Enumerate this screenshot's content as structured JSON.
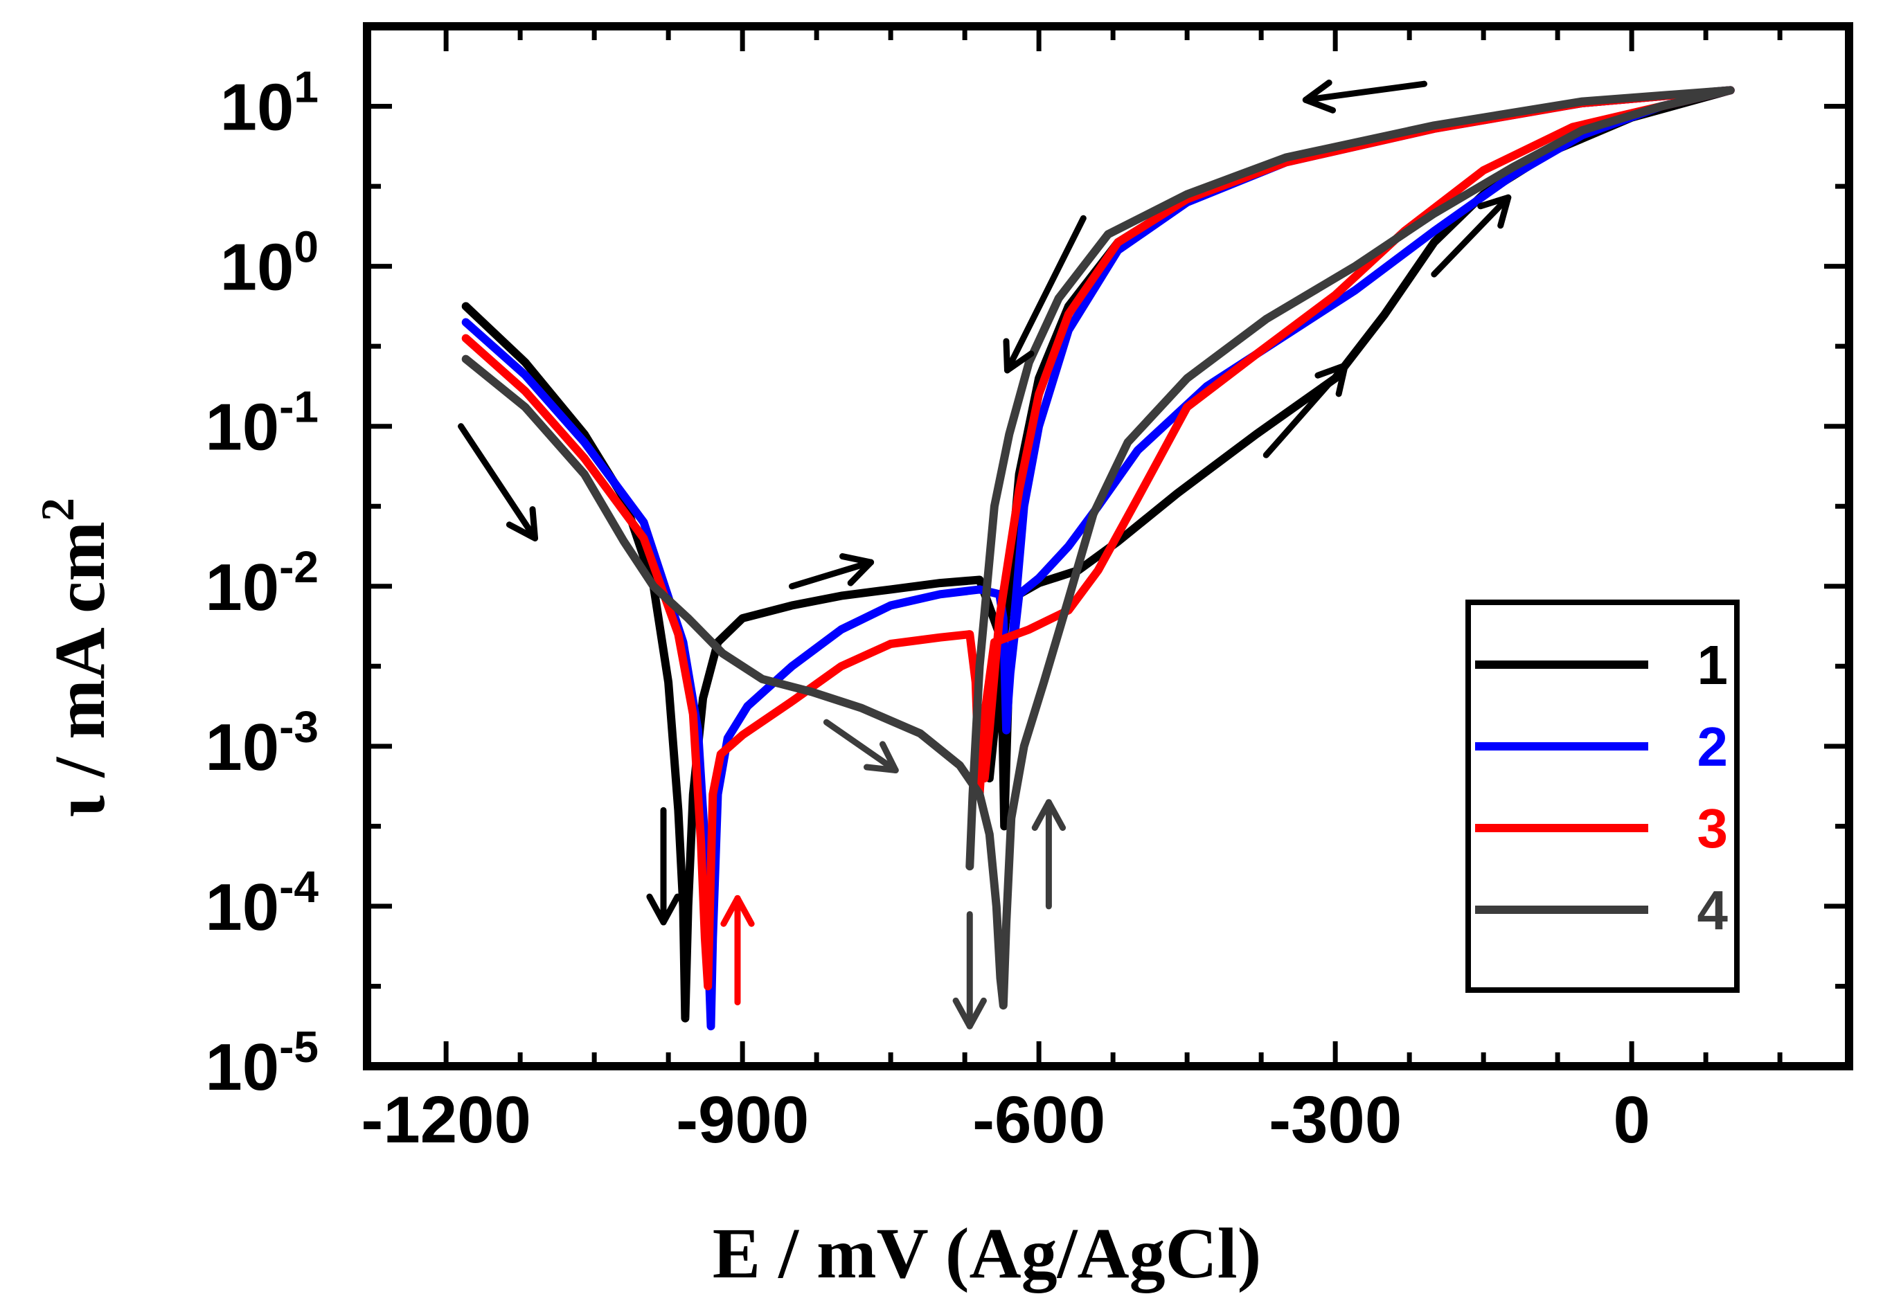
{
  "chart_data": {
    "type": "line",
    "title": "",
    "xlabel": "E / mV (Ag/AgCl)",
    "ylabel_symbol": "ι",
    "ylabel_rest": " / mA cm",
    "ylabel_sup": "2",
    "xlim": [
      -1280,
      220
    ],
    "ylim_log10": [
      -5,
      1.5
    ],
    "y_scale": "log",
    "x_ticks": [
      {
        "value": -1200,
        "label": "-1200"
      },
      {
        "value": -900,
        "label": "-900"
      },
      {
        "value": -600,
        "label": "-600"
      },
      {
        "value": -300,
        "label": "-300"
      },
      {
        "value": 0,
        "label": "0"
      }
    ],
    "y_ticks": [
      {
        "exp": 1,
        "base": "10",
        "sup": "1"
      },
      {
        "exp": 0,
        "base": "10",
        "sup": "0"
      },
      {
        "exp": -1,
        "base": "10",
        "sup": "-1"
      },
      {
        "exp": -2,
        "base": "10",
        "sup": "-2"
      },
      {
        "exp": -3,
        "base": "10",
        "sup": "-3"
      },
      {
        "exp": -4,
        "base": "10",
        "sup": "-4"
      },
      {
        "exp": -5,
        "base": "10",
        "sup": "-5"
      }
    ],
    "legend_position": "lower-right",
    "series": [
      {
        "name": "1",
        "color": "#000000",
        "points": [
          [
            -1180,
            -0.25
          ],
          [
            -1120,
            -0.6
          ],
          [
            -1060,
            -1.05
          ],
          [
            -1020,
            -1.45
          ],
          [
            -990,
            -2.0
          ],
          [
            -975,
            -2.6
          ],
          [
            -965,
            -3.4
          ],
          [
            -960,
            -4.0
          ],
          [
            -958,
            -4.7
          ],
          [
            -958,
            -4.7
          ],
          [
            -955,
            -4.0
          ],
          [
            -950,
            -3.3
          ],
          [
            -940,
            -2.7
          ],
          [
            -925,
            -2.35
          ],
          [
            -900,
            -2.2
          ],
          [
            -850,
            -2.12
          ],
          [
            -800,
            -2.06
          ],
          [
            -750,
            -2.02
          ],
          [
            -700,
            -1.98
          ],
          [
            -660,
            -1.96
          ],
          [
            -640,
            -2.3
          ],
          [
            -637,
            -2.8
          ],
          [
            -635,
            -3.5
          ],
          [
            -635,
            -3.5
          ],
          [
            -630,
            -2.5
          ],
          [
            -620,
            -2.05
          ],
          [
            -600,
            -1.98
          ],
          [
            -560,
            -1.9
          ],
          [
            -520,
            -1.72
          ],
          [
            -460,
            -1.42
          ],
          [
            -380,
            -1.05
          ],
          [
            -300,
            -0.7
          ],
          [
            -250,
            -0.3
          ],
          [
            -200,
            0.15
          ],
          [
            -150,
            0.45
          ],
          [
            -80,
            0.72
          ],
          [
            0,
            0.93
          ],
          [
            100,
            1.1
          ],
          [
            100,
            1.1
          ],
          [
            -50,
            1.02
          ],
          [
            -200,
            0.87
          ],
          [
            -350,
            0.67
          ],
          [
            -450,
            0.42
          ],
          [
            -520,
            0.15
          ],
          [
            -570,
            -0.25
          ],
          [
            -600,
            -0.7
          ],
          [
            -620,
            -1.3
          ],
          [
            -630,
            -2.0
          ],
          [
            -640,
            -2.6
          ],
          [
            -650,
            -3.2
          ]
        ]
      },
      {
        "name": "2",
        "color": "#0000ff",
        "points": [
          [
            -1180,
            -0.35
          ],
          [
            -1120,
            -0.68
          ],
          [
            -1060,
            -1.1
          ],
          [
            -1000,
            -1.6
          ],
          [
            -960,
            -2.35
          ],
          [
            -945,
            -2.9
          ],
          [
            -937,
            -3.7
          ],
          [
            -934,
            -4.4
          ],
          [
            -932,
            -4.75
          ],
          [
            -932,
            -4.75
          ],
          [
            -930,
            -4.2
          ],
          [
            -925,
            -3.3
          ],
          [
            -915,
            -2.95
          ],
          [
            -895,
            -2.75
          ],
          [
            -850,
            -2.5
          ],
          [
            -800,
            -2.27
          ],
          [
            -750,
            -2.12
          ],
          [
            -700,
            -2.05
          ],
          [
            -660,
            -2.02
          ],
          [
            -640,
            -2.05
          ],
          [
            -636,
            -2.2
          ],
          [
            -633,
            -2.9
          ],
          [
            -633,
            -2.9
          ],
          [
            -630,
            -2.6
          ],
          [
            -620,
            -2.05
          ],
          [
            -600,
            -1.95
          ],
          [
            -570,
            -1.75
          ],
          [
            -540,
            -1.5
          ],
          [
            -500,
            -1.15
          ],
          [
            -430,
            -0.75
          ],
          [
            -350,
            -0.43
          ],
          [
            -280,
            -0.15
          ],
          [
            -200,
            0.22
          ],
          [
            -120,
            0.57
          ],
          [
            -50,
            0.82
          ],
          [
            30,
            1.0
          ],
          [
            100,
            1.1
          ],
          [
            100,
            1.1
          ],
          [
            -50,
            1.02
          ],
          [
            -200,
            0.86
          ],
          [
            -350,
            0.65
          ],
          [
            -450,
            0.4
          ],
          [
            -520,
            0.1
          ],
          [
            -570,
            -0.4
          ],
          [
            -600,
            -1.0
          ],
          [
            -615,
            -1.5
          ],
          [
            -625,
            -2.2
          ],
          [
            -632,
            -2.8
          ]
        ]
      },
      {
        "name": "3",
        "color": "#ff0000",
        "points": [
          [
            -1180,
            -0.45
          ],
          [
            -1120,
            -0.78
          ],
          [
            -1060,
            -1.2
          ],
          [
            -1000,
            -1.7
          ],
          [
            -965,
            -2.3
          ],
          [
            -950,
            -2.8
          ],
          [
            -942,
            -3.6
          ],
          [
            -938,
            -4.2
          ],
          [
            -935,
            -4.5
          ],
          [
            -935,
            -4.5
          ],
          [
            -933,
            -4.0
          ],
          [
            -930,
            -3.3
          ],
          [
            -922,
            -3.05
          ],
          [
            -900,
            -2.93
          ],
          [
            -850,
            -2.72
          ],
          [
            -800,
            -2.5
          ],
          [
            -750,
            -2.36
          ],
          [
            -700,
            -2.32
          ],
          [
            -670,
            -2.3
          ],
          [
            -664,
            -2.6
          ],
          [
            -660,
            -3.3
          ],
          [
            -660,
            -3.3
          ],
          [
            -655,
            -2.8
          ],
          [
            -645,
            -2.35
          ],
          [
            -610,
            -2.27
          ],
          [
            -570,
            -2.15
          ],
          [
            -540,
            -1.9
          ],
          [
            -500,
            -1.45
          ],
          [
            -450,
            -0.88
          ],
          [
            -380,
            -0.55
          ],
          [
            -300,
            -0.18
          ],
          [
            -230,
            0.22
          ],
          [
            -150,
            0.6
          ],
          [
            -60,
            0.87
          ],
          [
            30,
            1.0
          ],
          [
            100,
            1.1
          ],
          [
            100,
            1.1
          ],
          [
            -50,
            1.02
          ],
          [
            -200,
            0.86
          ],
          [
            -350,
            0.65
          ],
          [
            -450,
            0.42
          ],
          [
            -520,
            0.15
          ],
          [
            -570,
            -0.3
          ],
          [
            -600,
            -0.8
          ],
          [
            -620,
            -1.4
          ],
          [
            -640,
            -2.2
          ],
          [
            -650,
            -2.9
          ],
          [
            -655,
            -3.2
          ]
        ]
      },
      {
        "name": "4",
        "color": "#3c3c3c",
        "points": [
          [
            -1180,
            -0.58
          ],
          [
            -1120,
            -0.88
          ],
          [
            -1060,
            -1.3
          ],
          [
            -1020,
            -1.72
          ],
          [
            -990,
            -2.0
          ],
          [
            -955,
            -2.2
          ],
          [
            -920,
            -2.42
          ],
          [
            -880,
            -2.58
          ],
          [
            -830,
            -2.66
          ],
          [
            -780,
            -2.76
          ],
          [
            -720,
            -2.92
          ],
          [
            -680,
            -3.12
          ],
          [
            -660,
            -3.3
          ],
          [
            -650,
            -3.55
          ],
          [
            -643,
            -4.0
          ],
          [
            -639,
            -4.45
          ],
          [
            -636,
            -4.62
          ],
          [
            -636,
            -4.62
          ],
          [
            -633,
            -4.1
          ],
          [
            -628,
            -3.45
          ],
          [
            -615,
            -3.0
          ],
          [
            -595,
            -2.6
          ],
          [
            -570,
            -2.08
          ],
          [
            -545,
            -1.55
          ],
          [
            -510,
            -1.1
          ],
          [
            -450,
            -0.7
          ],
          [
            -370,
            -0.33
          ],
          [
            -280,
            0.0
          ],
          [
            -200,
            0.33
          ],
          [
            -120,
            0.62
          ],
          [
            -50,
            0.85
          ],
          [
            30,
            1.0
          ],
          [
            100,
            1.1
          ],
          [
            100,
            1.1
          ],
          [
            -50,
            1.03
          ],
          [
            -200,
            0.88
          ],
          [
            -350,
            0.68
          ],
          [
            -450,
            0.45
          ],
          [
            -530,
            0.2
          ],
          [
            -580,
            -0.2
          ],
          [
            -610,
            -0.6
          ],
          [
            -630,
            -1.05
          ],
          [
            -645,
            -1.5
          ],
          [
            -660,
            -2.5
          ],
          [
            -667,
            -3.3
          ],
          [
            -670,
            -3.75
          ]
        ]
      }
    ],
    "arrows": [
      {
        "color": "#000000",
        "from": [
          -1185,
          -1.0
        ],
        "to": [
          -1110,
          -1.7
        ]
      },
      {
        "color": "#000000",
        "from": [
          -850,
          -2.0
        ],
        "to": [
          -770,
          -1.85
        ]
      },
      {
        "color": "#000000",
        "from": [
          -980,
          -3.4
        ],
        "to": [
          -980,
          -4.1
        ]
      },
      {
        "color": "#ff0000",
        "from": [
          -905,
          -4.6
        ],
        "to": [
          -905,
          -3.95
        ]
      },
      {
        "color": "#3c3c3c",
        "from": [
          -815,
          -2.85
        ],
        "to": [
          -745,
          -3.15
        ]
      },
      {
        "color": "#3c3c3c",
        "from": [
          -670,
          -4.05
        ],
        "to": [
          -670,
          -4.75
        ]
      },
      {
        "color": "#3c3c3c",
        "from": [
          -590,
          -4.0
        ],
        "to": [
          -590,
          -3.35
        ]
      },
      {
        "color": "#000000",
        "from": [
          -370,
          -1.18
        ],
        "to": [
          -290,
          -0.62
        ]
      },
      {
        "color": "#000000",
        "from": [
          -200,
          -0.05
        ],
        "to": [
          -125,
          0.43
        ]
      },
      {
        "color": "#000000",
        "from": [
          -555,
          0.3
        ],
        "to": [
          -632,
          -0.65
        ]
      },
      {
        "color": "#000000",
        "from": [
          -210,
          1.14
        ],
        "to": [
          -330,
          1.04
        ]
      }
    ]
  }
}
